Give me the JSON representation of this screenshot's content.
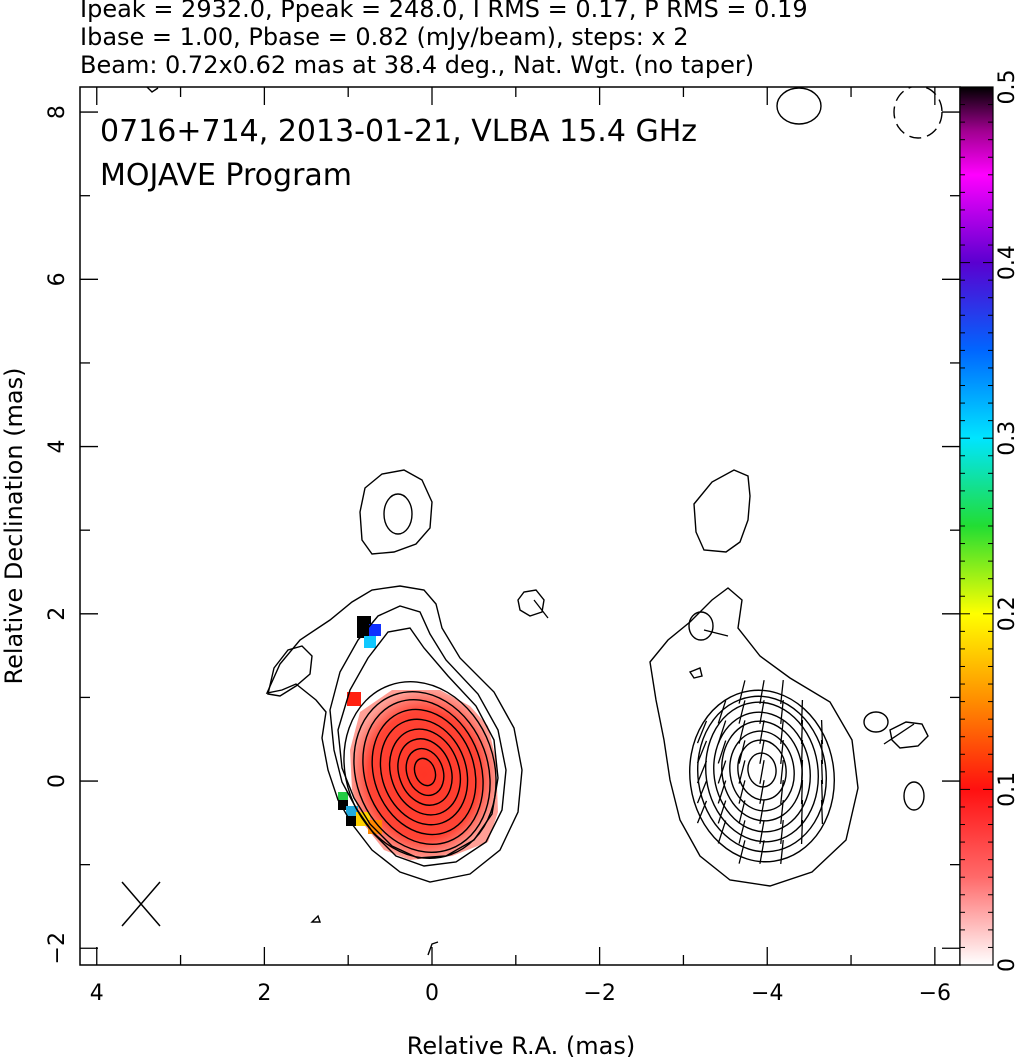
{
  "header": {
    "line1": "Ipeak = 2932.0, Ppeak = 248.0, I RMS = 0.17, P RMS = 0.19",
    "line2": "Ibase = 1.00, Pbase = 0.82 (mJy/beam), steps: x 2",
    "line3": "Beam: 0.72x0.62 mas at 38.4 deg., Nat. Wgt. (no taper)"
  },
  "chart_data": {
    "type": "heatmap",
    "title": "0716+714, 2013-01-21, VLBA 15.4 GHz",
    "subtitle": "MOJAVE Program",
    "xlabel": "Relative R.A. (mas)",
    "ylabel": "Relative Declination (mas)",
    "xlim": [
      4.2,
      -6.3
    ],
    "ylim": [
      -2.2,
      8.3
    ],
    "x_ticks": [
      4,
      2,
      0,
      -2,
      -4,
      -6
    ],
    "x_tick_labels": [
      "4",
      "2",
      "0",
      "−2",
      "−4",
      "−6"
    ],
    "y_ticks": [
      -2,
      0,
      2,
      4,
      6,
      8
    ],
    "y_tick_labels": [
      "−2",
      "0",
      "2",
      "4",
      "6",
      "8"
    ],
    "colorbar": {
      "range": [
        0,
        0.5
      ],
      "ticks": [
        0,
        0.1,
        0.2,
        0.3,
        0.4,
        0.5
      ],
      "tick_labels": [
        "0",
        "0.1",
        "0.2",
        "0.3",
        "0.4",
        "0.5"
      ],
      "stops": [
        "#ffffff",
        "#ff2020",
        "#ff9900",
        "#ffff00",
        "#22dd33",
        "#00e5ff",
        "#0055ff",
        "#5500cc",
        "#ff00ff",
        "#aa0099",
        "#000000"
      ]
    },
    "left_panel": {
      "core": {
        "x": 0.0,
        "y": 0.1
      },
      "contour_levels_mjy": [
        1,
        2,
        4,
        8,
        16,
        32,
        64,
        128,
        256,
        512,
        1024,
        2048
      ],
      "fractional_polarization_region": "red (~0.05-0.1) covering core; edge pixels 0.1-0.5"
    },
    "right_panel": {
      "core": {
        "x": -3.95,
        "y": 0.1
      },
      "vector_field": "EVPA sticks over core region"
    },
    "beam": {
      "major_mas": 0.72,
      "minor_mas": 0.62,
      "pa_deg": 38.4
    }
  }
}
